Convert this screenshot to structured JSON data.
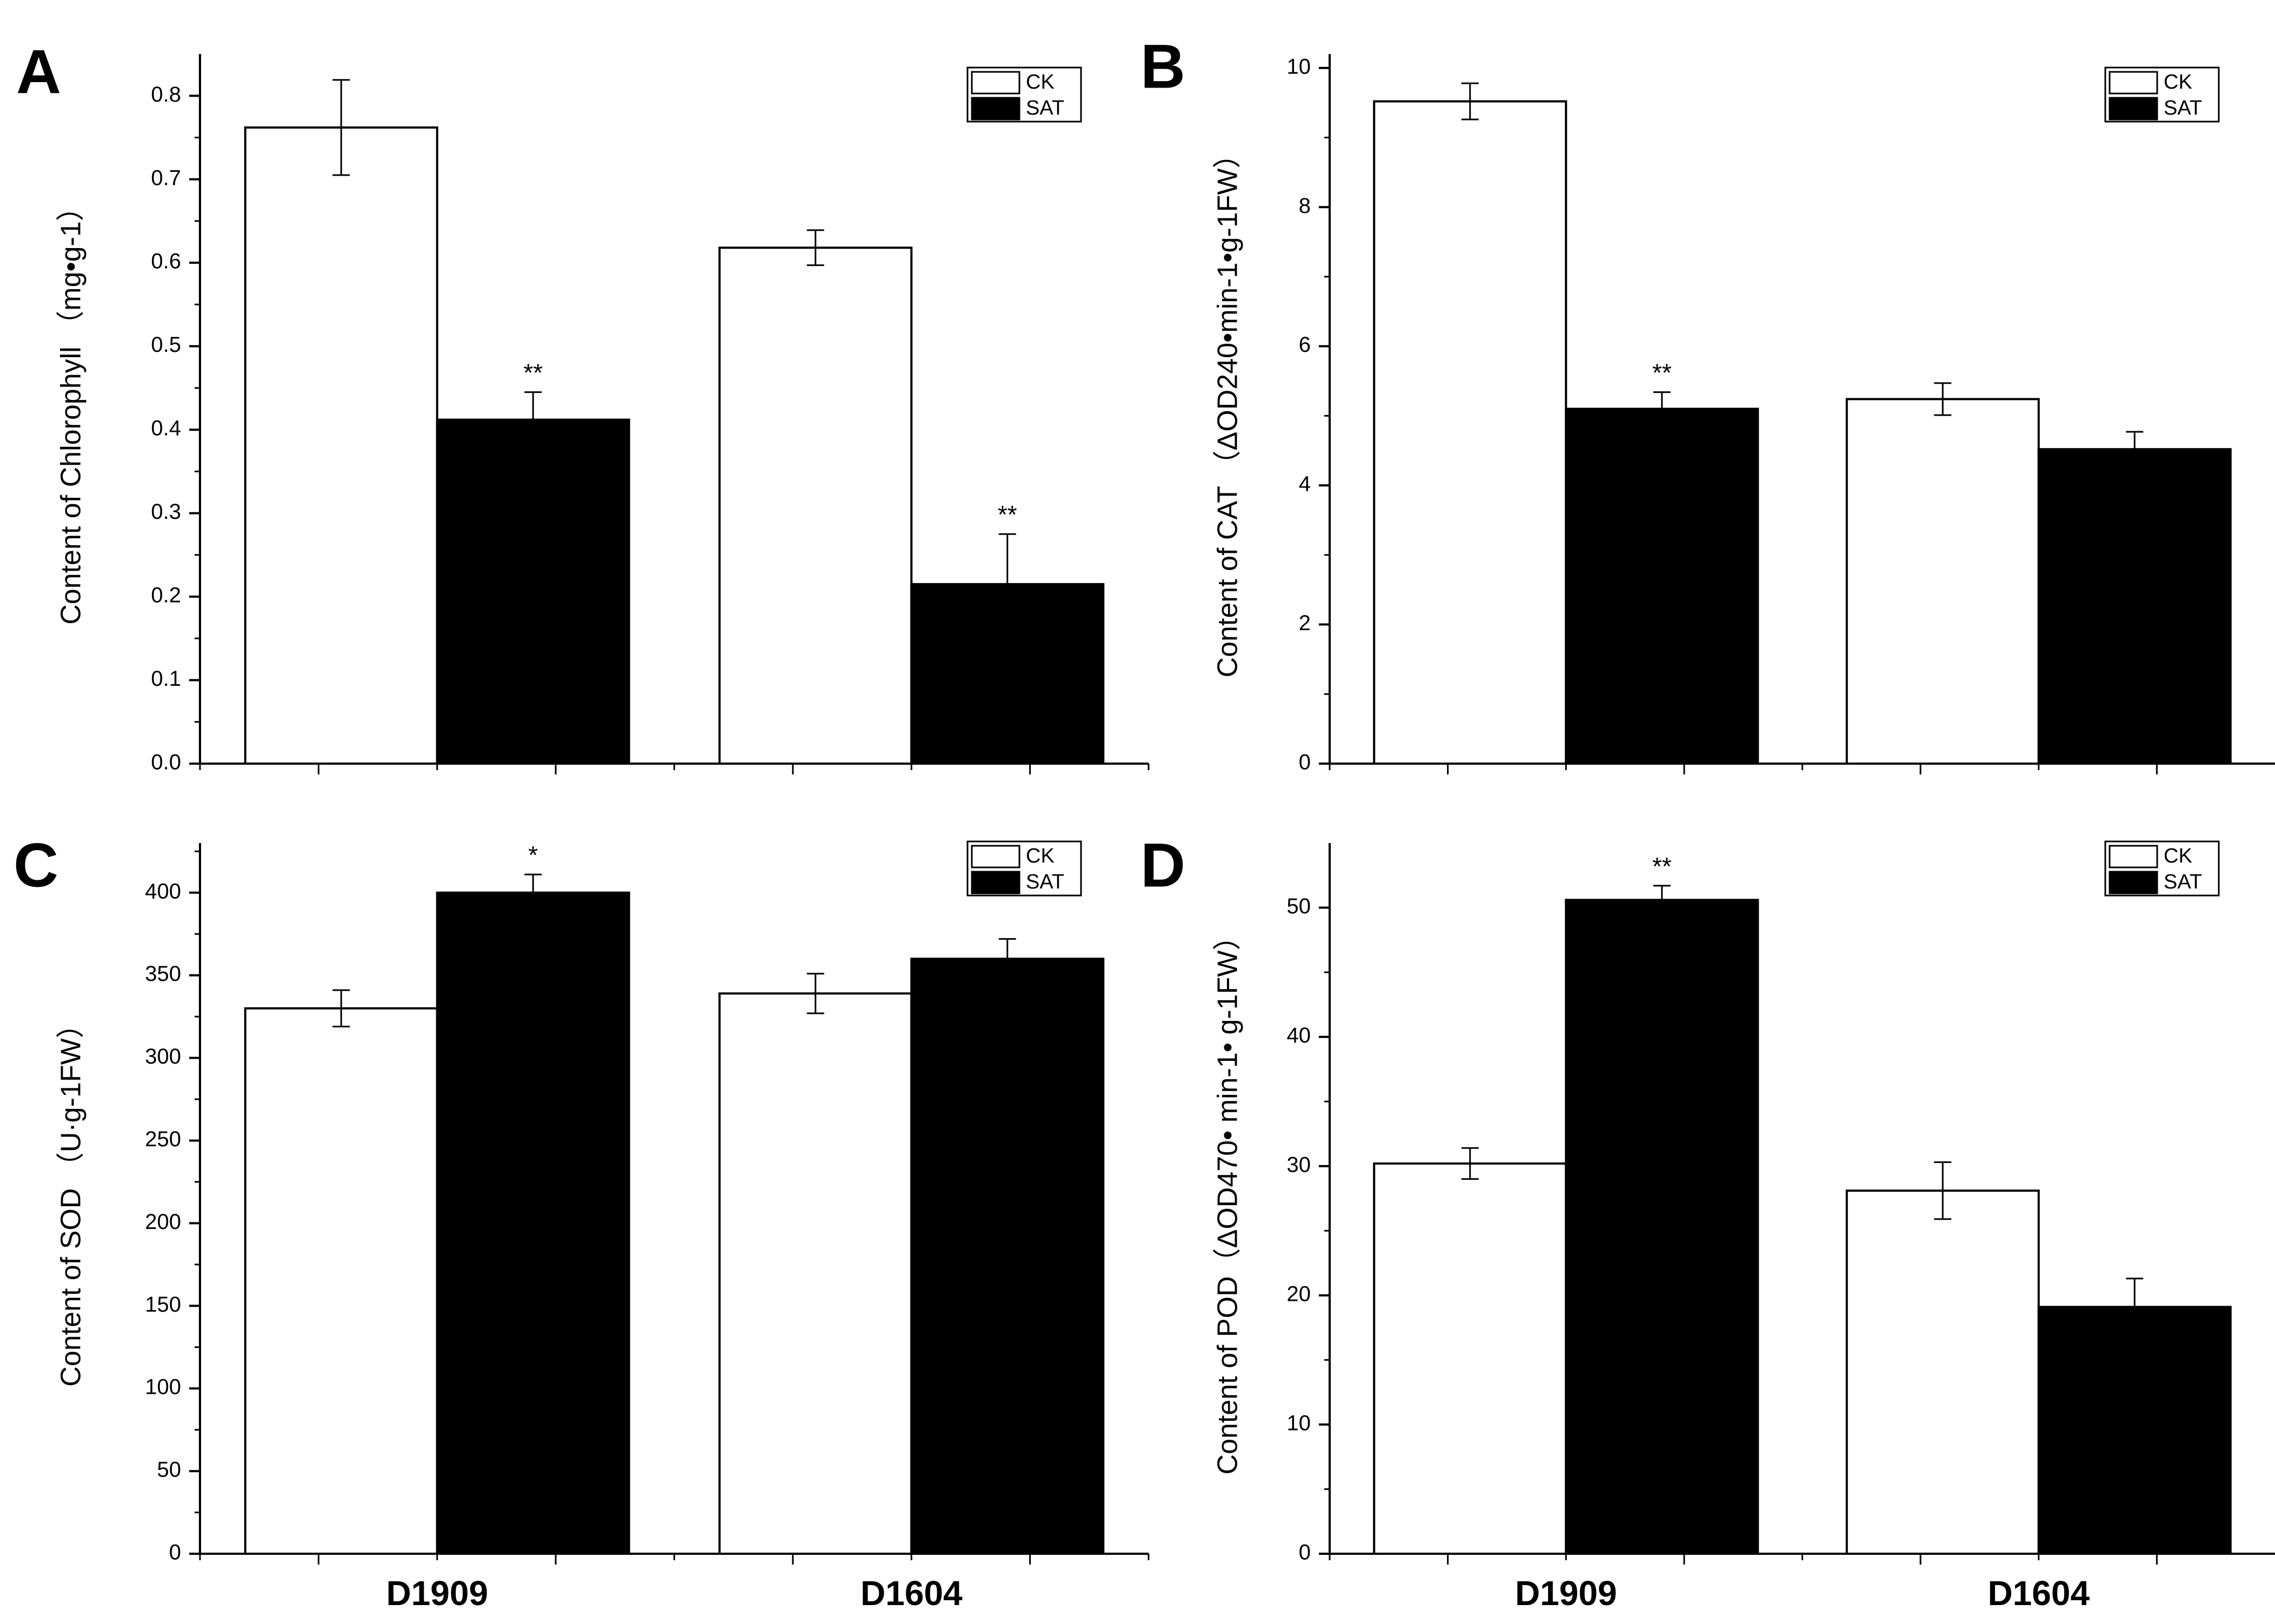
{
  "colors": {
    "ck": "#ffffff",
    "sat": "#000000",
    "axis": "#000000",
    "background": "#ffffff"
  },
  "legend": [
    "CK",
    "SAT"
  ],
  "categories": [
    "D1909",
    "D1604"
  ],
  "chart_data": [
    {
      "panel": "A",
      "type": "bar",
      "ylabel": "Content of Chlorophyll （mg•g-1）",
      "ylim": [
        0,
        0.85
      ],
      "ticks": [
        0.0,
        0.1,
        0.2,
        0.3,
        0.4,
        0.5,
        0.6,
        0.7,
        0.8
      ],
      "tick_labels": [
        "0.0",
        "0.1",
        "0.2",
        "0.3",
        "0.4",
        "0.5",
        "0.6",
        "0.7",
        "0.8"
      ],
      "categories": [
        "D1909",
        "D1604"
      ],
      "series": [
        {
          "name": "CK",
          "values": [
            0.762,
            0.618
          ],
          "errors": [
            0.057,
            0.021
          ],
          "sig": [
            "",
            ""
          ]
        },
        {
          "name": "SAT",
          "values": [
            0.412,
            0.215
          ],
          "errors": [
            0.033,
            0.06
          ],
          "sig": [
            "**",
            "**"
          ]
        }
      ]
    },
    {
      "panel": "B",
      "type": "bar",
      "ylabel": "Content of CAT （ΔOD240•min-1•g-1FW）",
      "ylim": [
        0,
        10.2
      ],
      "ticks": [
        0,
        2,
        4,
        6,
        8,
        10
      ],
      "tick_labels": [
        "0",
        "2",
        "4",
        "6",
        "8",
        "10"
      ],
      "categories": [
        "D1909",
        "D1604"
      ],
      "series": [
        {
          "name": "CK",
          "values": [
            9.52,
            5.24
          ],
          "errors": [
            0.26,
            0.23
          ],
          "sig": [
            "",
            ""
          ]
        },
        {
          "name": "SAT",
          "values": [
            5.1,
            4.52
          ],
          "errors": [
            0.24,
            0.25
          ],
          "sig": [
            "**",
            ""
          ]
        }
      ]
    },
    {
      "panel": "C",
      "type": "bar",
      "ylabel": "Content of SOD （U·g-1FW）",
      "ylim": [
        0,
        430
      ],
      "ticks": [
        0,
        50,
        100,
        150,
        200,
        250,
        300,
        350,
        400
      ],
      "tick_labels": [
        "0",
        "50",
        "100",
        "150",
        "200",
        "250",
        "300",
        "350",
        "400"
      ],
      "categories": [
        "D1909",
        "D1604"
      ],
      "series": [
        {
          "name": "CK",
          "values": [
            330,
            339
          ],
          "errors": [
            11,
            12
          ],
          "sig": [
            "",
            ""
          ]
        },
        {
          "name": "SAT",
          "values": [
            400,
            360
          ],
          "errors": [
            11,
            12
          ],
          "sig": [
            "*",
            ""
          ]
        }
      ]
    },
    {
      "panel": "D",
      "type": "bar",
      "ylabel": "Content of POD（ΔOD470• min-1• g-1FW）",
      "ylim": [
        0,
        55
      ],
      "ticks": [
        0,
        10,
        20,
        30,
        40,
        50
      ],
      "tick_labels": [
        "0",
        "10",
        "20",
        "30",
        "40",
        "50"
      ],
      "categories": [
        "D1909",
        "D1604"
      ],
      "series": [
        {
          "name": "CK",
          "values": [
            30.2,
            28.1
          ],
          "errors": [
            1.2,
            2.2
          ],
          "sig": [
            "",
            ""
          ]
        },
        {
          "name": "SAT",
          "values": [
            50.6,
            19.1
          ],
          "errors": [
            1.1,
            2.2
          ],
          "sig": [
            "**",
            ""
          ]
        }
      ]
    }
  ]
}
